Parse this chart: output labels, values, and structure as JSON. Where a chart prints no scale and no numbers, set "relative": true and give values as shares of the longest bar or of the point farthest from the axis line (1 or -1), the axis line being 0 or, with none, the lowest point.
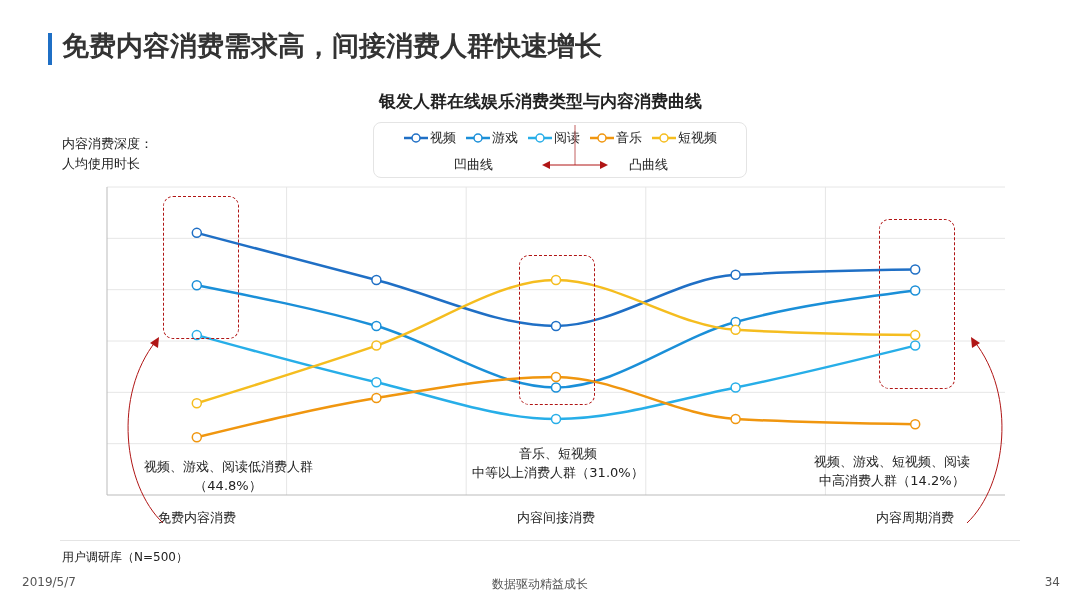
{
  "chart_data": {
    "type": "line",
    "title": "免费内容消费需求高，间接消费人群快速增长",
    "subtitle": "银发人群在线娱乐消费类型与内容消费曲线",
    "ylabel": "内容消费深度：人均使用时长",
    "categories": [
      "免费内容消费",
      null,
      "内容间接消费",
      null,
      "内容周期消费"
    ],
    "relative": true,
    "series": [
      {
        "name": "视频",
        "color": "#1f6fc5",
        "values": [
          1,
          0.82,
          0.645,
          0.84,
          0.86
        ]
      },
      {
        "name": "游戏",
        "color": "#1a8fd8",
        "values": [
          0.8,
          0.645,
          0.41,
          0.66,
          0.78
        ]
      },
      {
        "name": "阅读",
        "color": "#27aee8",
        "values": [
          0.61,
          0.43,
          0.29,
          0.41,
          0.57
        ]
      },
      {
        "name": "音乐",
        "color": "#f0960f",
        "values": [
          0.22,
          0.37,
          0.45,
          0.29,
          0.27
        ]
      },
      {
        "name": "短视频",
        "color": "#f5bd1f",
        "values": [
          0.35,
          0.57,
          0.82,
          0.63,
          0.61
        ]
      }
    ],
    "annotations": [
      "凹曲线",
      "凸曲线",
      "视频、游戏、阅读低消费人群（44.8%）",
      "音乐、短视频",
      "中等以上消费人群（31.0%）",
      "视频、游戏、短视频、阅读",
      "中高消费人群（14.2%）",
      "用户调研库（N=500）",
      "2019/5/7",
      "数据驱动精益成长",
      "34"
    ],
    "grid": true,
    "legend": "top",
    "marker": "circle",
    "line_style": "solid"
  }
}
